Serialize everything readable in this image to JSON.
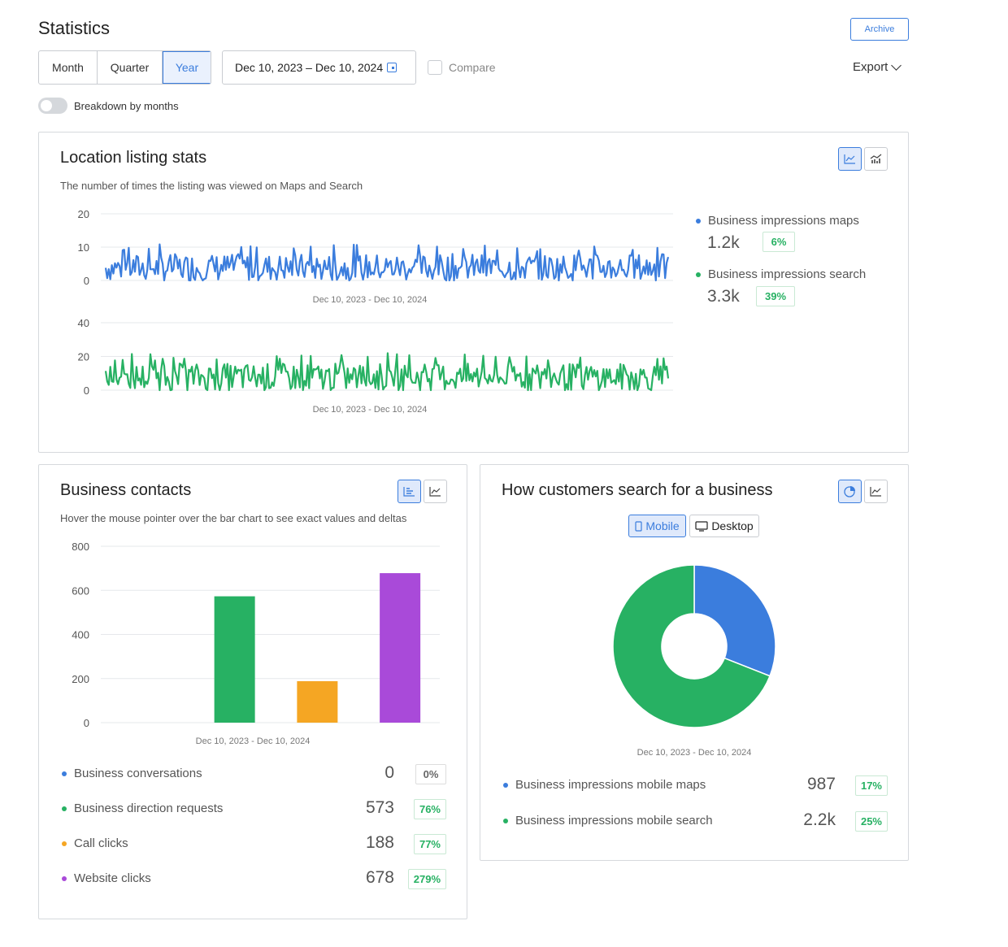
{
  "page": {
    "title": "Statistics",
    "archive_label": "Archive",
    "periods": [
      "Month",
      "Quarter",
      "Year"
    ],
    "active_period": "Year",
    "date_range": "Dec 10, 2023 – Dec 10, 2024",
    "compare_label": "Compare",
    "export_label": "Export",
    "breakdown_label": "Breakdown by months"
  },
  "listing": {
    "title": "Location listing stats",
    "subtitle": "The number of times the listing was viewed on Maps and Search",
    "legend": [
      {
        "name": "Business impressions maps",
        "value": "1.2k",
        "delta": "6%",
        "color": "#3b7ddd"
      },
      {
        "name": "Business impressions search",
        "value": "3.3k",
        "delta": "39%",
        "color": "#27b163"
      }
    ]
  },
  "contacts": {
    "title": "Business contacts",
    "subtitle": "Hover the mouse pointer over the bar chart to see exact values and deltas",
    "legend": [
      {
        "name": "Business conversations",
        "value": "0",
        "delta": "0%",
        "color": "#3b7ddd"
      },
      {
        "name": "Business direction requests",
        "value": "573",
        "delta": "76%",
        "color": "#27b163"
      },
      {
        "name": "Call clicks",
        "value": "188",
        "delta": "77%",
        "color": "#f5a623"
      },
      {
        "name": "Website clicks",
        "value": "678",
        "delta": "279%",
        "color": "#a94ad9"
      }
    ]
  },
  "search": {
    "title": "How customers search for a business",
    "mode_mobile": "Mobile",
    "mode_desktop": "Desktop",
    "legend": [
      {
        "name": "Business impressions mobile maps",
        "value": "987",
        "delta": "17%",
        "color": "#3b7ddd"
      },
      {
        "name": "Business impressions mobile search",
        "value": "2.2k",
        "delta": "25%",
        "color": "#27b163"
      }
    ]
  },
  "chart_data": [
    {
      "type": "line",
      "series": [
        {
          "name": "Business impressions maps",
          "color": "#3b7ddd"
        }
      ],
      "xlabel": "Dec 10, 2023 - Dec 10, 2024",
      "yticks": [
        0,
        10,
        20
      ],
      "ylim": [
        0,
        20
      ],
      "points": 366,
      "y_typical_range": [
        0,
        11
      ],
      "y_peak": 11
    },
    {
      "type": "line",
      "series": [
        {
          "name": "Business impressions search",
          "color": "#27b163"
        }
      ],
      "xlabel": "Dec 10, 2023 - Dec 10, 2024",
      "yticks": [
        0,
        20,
        40
      ],
      "ylim": [
        0,
        40
      ],
      "points": 366,
      "y_typical_range": [
        0,
        22
      ],
      "y_peak": 22
    },
    {
      "type": "bar",
      "categories": [
        "Business conversations",
        "Business direction requests",
        "Call clicks",
        "Website clicks"
      ],
      "values": [
        0,
        573,
        188,
        678
      ],
      "colors": [
        "#3b7ddd",
        "#27b163",
        "#f5a623",
        "#a94ad9"
      ],
      "xlabel": "Dec 10, 2023 - Dec 10, 2024",
      "yticks": [
        0,
        200,
        400,
        600,
        800
      ],
      "ylim": [
        0,
        800
      ]
    },
    {
      "type": "pie",
      "categories": [
        "Business impressions mobile maps",
        "Business impressions mobile search"
      ],
      "values": [
        987,
        2200
      ],
      "colors": [
        "#3b7ddd",
        "#27b163"
      ],
      "donut": true,
      "xlabel": "Dec 10, 2023 - Dec 10, 2024"
    }
  ]
}
